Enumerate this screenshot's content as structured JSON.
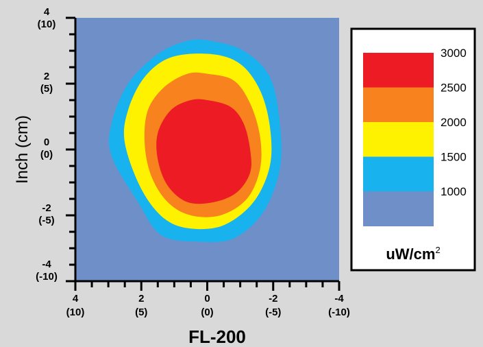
{
  "chart_data": {
    "type": "heatmap",
    "title": "FL-200",
    "xlabel": "FL-200",
    "ylabel": "Inch (cm)",
    "xlim": [
      4,
      -4
    ],
    "ylim": [
      -4,
      4
    ],
    "x_ticks": [
      {
        "value": 4,
        "label": "4",
        "sublabel": "(10)"
      },
      {
        "value": 2,
        "label": "2",
        "sublabel": "(5)"
      },
      {
        "value": 0,
        "label": "0",
        "sublabel": "(0)"
      },
      {
        "value": -2,
        "label": "-2",
        "sublabel": "(-5)"
      },
      {
        "value": -4,
        "label": "-4",
        "sublabel": "(-10)"
      }
    ],
    "y_ticks": [
      {
        "value": 4,
        "label": "4",
        "sublabel": "(10)"
      },
      {
        "value": 2,
        "label": "2",
        "sublabel": "(5)"
      },
      {
        "value": 0,
        "label": "0",
        "sublabel": "(0)"
      },
      {
        "value": -2,
        "label": "-2",
        "sublabel": "(-5)"
      },
      {
        "value": -4,
        "label": "-4",
        "sublabel": "(-10)"
      }
    ],
    "minor_tick_step": 0.5,
    "levels": [
      {
        "min": 0,
        "max": 1000,
        "color": "#6f8fc8"
      },
      {
        "min": 1000,
        "max": 1500,
        "color": "#18b2ee"
      },
      {
        "min": 1500,
        "max": 2000,
        "color": "#fff200"
      },
      {
        "min": 2000,
        "max": 2500,
        "color": "#f7821e"
      },
      {
        "min": 2500,
        "max": 3000,
        "color": "#ed1c24"
      }
    ],
    "contours": [
      {
        "level": 1000,
        "color": "#18b2ee",
        "points": [
          [
            -0.1,
            3.3
          ],
          [
            -1.1,
            3.0
          ],
          [
            -1.9,
            2.2
          ],
          [
            -2.2,
            0.8
          ],
          [
            -2.2,
            -0.6
          ],
          [
            -1.7,
            -1.9
          ],
          [
            -0.8,
            -2.7
          ],
          [
            0.3,
            -2.8
          ],
          [
            1.4,
            -2.6
          ],
          [
            2.1,
            -1.6
          ],
          [
            2.9,
            -0.2
          ],
          [
            2.9,
            0.8
          ],
          [
            2.4,
            2.0
          ],
          [
            1.5,
            2.9
          ],
          [
            0.6,
            3.3
          ]
        ]
      },
      {
        "level": 1500,
        "color": "#fff200",
        "points": [
          [
            -0.1,
            2.9
          ],
          [
            -1.0,
            2.6
          ],
          [
            -1.6,
            1.8
          ],
          [
            -1.9,
            0.7
          ],
          [
            -1.9,
            -0.5
          ],
          [
            -1.4,
            -1.6
          ],
          [
            -0.5,
            -2.3
          ],
          [
            0.5,
            -2.4
          ],
          [
            1.3,
            -2.1
          ],
          [
            2.0,
            -1.2
          ],
          [
            2.5,
            0.2
          ],
          [
            2.4,
            1.2
          ],
          [
            1.9,
            2.2
          ],
          [
            1.1,
            2.8
          ]
        ]
      },
      {
        "level": 2000,
        "color": "#f7821e",
        "points": [
          [
            0.0,
            2.3
          ],
          [
            -0.8,
            2.1
          ],
          [
            -1.3,
            1.4
          ],
          [
            -1.6,
            0.4
          ],
          [
            -1.6,
            -0.6
          ],
          [
            -1.2,
            -1.5
          ],
          [
            -0.4,
            -2.0
          ],
          [
            0.5,
            -2.0
          ],
          [
            1.2,
            -1.6
          ],
          [
            1.7,
            -0.8
          ],
          [
            1.9,
            0.2
          ],
          [
            1.8,
            1.2
          ],
          [
            1.3,
            1.9
          ],
          [
            0.6,
            2.3
          ]
        ]
      },
      {
        "level": 2500,
        "color": "#ed1c24",
        "points": [
          [
            0.0,
            1.5
          ],
          [
            -0.7,
            1.3
          ],
          [
            -1.1,
            0.8
          ],
          [
            -1.3,
            0.0
          ],
          [
            -1.3,
            -0.7
          ],
          [
            -0.9,
            -1.3
          ],
          [
            -0.2,
            -1.6
          ],
          [
            0.6,
            -1.6
          ],
          [
            1.2,
            -1.1
          ],
          [
            1.5,
            -0.3
          ],
          [
            1.5,
            0.5
          ],
          [
            1.1,
            1.2
          ],
          [
            0.5,
            1.5
          ]
        ]
      }
    ],
    "legend": {
      "placement": "right",
      "tick_labels": [
        "3000",
        "2500",
        "2000",
        "1500",
        "1000"
      ],
      "swatches": [
        {
          "color": "#ed1c24",
          "from": 2500,
          "to": 3000
        },
        {
          "color": "#f7821e",
          "from": 2000,
          "to": 2500
        },
        {
          "color": "#fff200",
          "from": 1500,
          "to": 2000
        },
        {
          "color": "#18b2ee",
          "from": 1000,
          "to": 1500
        },
        {
          "color": "#6f8fc8",
          "from": 0,
          "to": 1000
        }
      ],
      "unit_base": "uW/cm",
      "unit_sup": "2"
    }
  }
}
